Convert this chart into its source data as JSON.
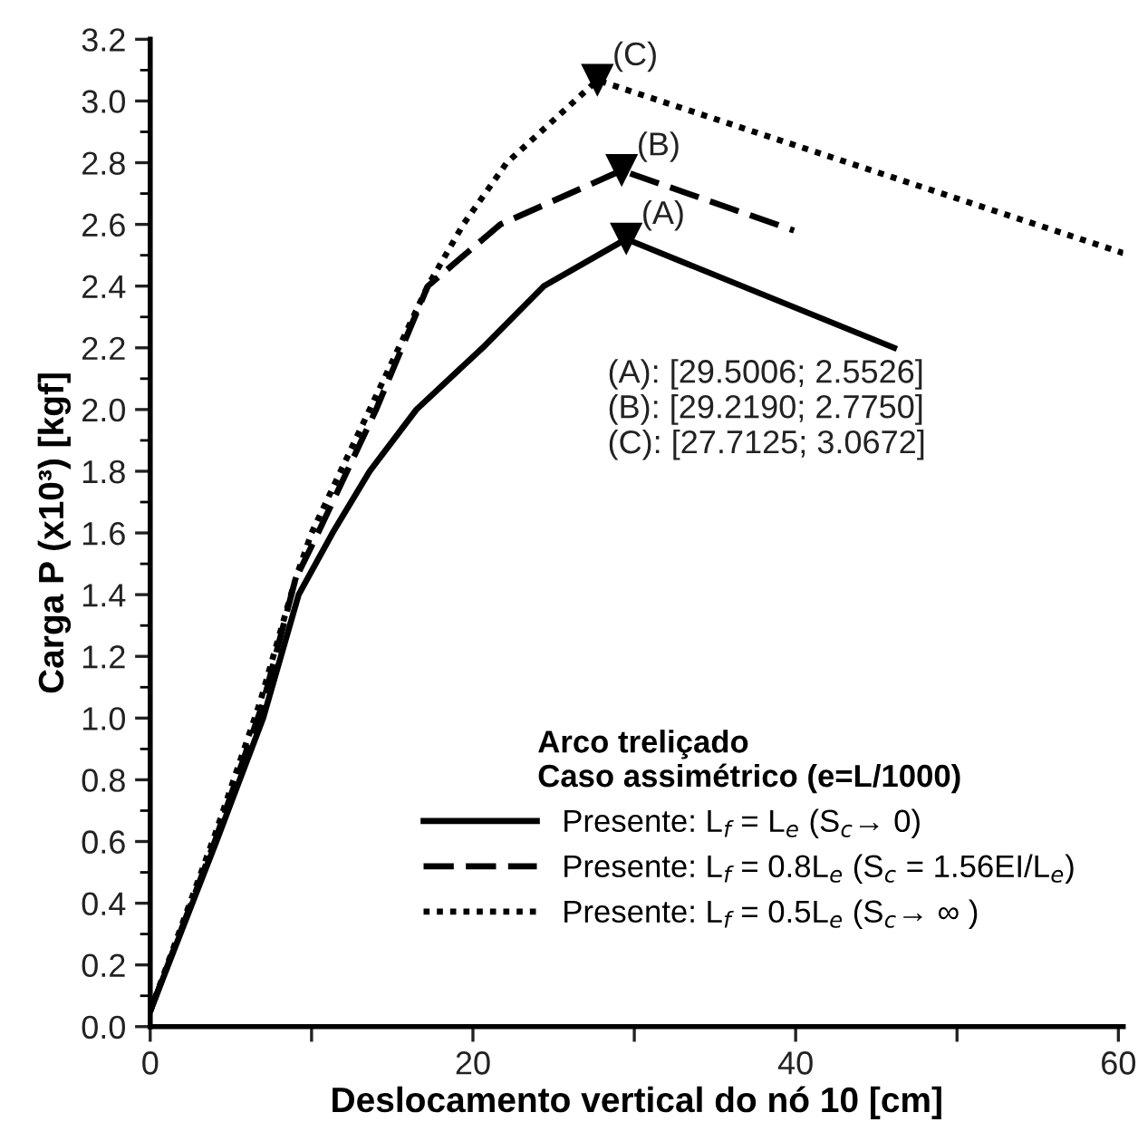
{
  "chart_data": {
    "type": "line",
    "xlabel": "Deslocamento vertical do nó 10 [cm]",
    "ylabel": "Carga P (x10³) [kgf]",
    "legend_title": "Arco treliçado\nCaso assimétrico (e=L/1000)",
    "legend": "bottom right",
    "grid": false,
    "xlim": [
      0,
      60.3
    ],
    "xticks": [
      0,
      {
        "value": 10,
        "label": null
      },
      20,
      {
        "value": 30,
        "label": null
      },
      40,
      {
        "value": 50,
        "label": null
      },
      60
    ],
    "ylim": [
      0,
      3.2
    ],
    "yticks": [
      {
        "value": 0,
        "label": "0.0"
      },
      {
        "value": 0.2,
        "label": "0.2"
      },
      {
        "value": 0.4,
        "label": "0.4"
      },
      {
        "value": 0.6,
        "label": "0.6"
      },
      {
        "value": 0.8,
        "label": "0.8"
      },
      {
        "value": 1,
        "label": "1.0"
      },
      {
        "value": 1.2,
        "label": "1.2"
      },
      {
        "value": 1.4,
        "label": "1.4"
      },
      {
        "value": 1.6,
        "label": "1.6"
      },
      {
        "value": 1.8,
        "label": "1.8"
      },
      {
        "value": 2,
        "label": "2.0"
      },
      {
        "value": 2.2,
        "label": "2.2"
      },
      {
        "value": 2.4,
        "label": "2.4"
      },
      {
        "value": 2.6,
        "label": "2.6"
      },
      {
        "value": 2.8,
        "label": "2.8"
      },
      {
        "value": 3,
        "label": "3.0"
      },
      {
        "value": 3.2,
        "label": "3.2"
      }
    ],
    "series": [
      {
        "name": "Presente: L$_{f}$ = L$_{e}$ (S$_{c}$→ 0)",
        "color": "#000000",
        "line_style": "solid",
        "x": [
          0,
          4.1,
          7.0,
          9.2,
          11.3,
          13.6,
          16.5,
          20.6,
          24.4,
          29.5006,
          46.1
        ],
        "values": [
          0.05,
          0.6,
          1.0,
          1.4,
          1.6,
          1.8,
          2.0,
          2.2,
          2.4,
          2.5526,
          2.2
        ]
      },
      {
        "name": "Presente: L$_{f}$ = 0.8L$_{e}$ (S$_{c}$ = 1.56EI/L$_{e}$)",
        "color": "#000000",
        "line_style": "dashed",
        "x": [
          0,
          4.0,
          7.0,
          9.0,
          10.4,
          14.0,
          17.2,
          21.7,
          29.219,
          39.9
        ],
        "values": [
          0.05,
          0.6,
          1.05,
          1.45,
          1.6,
          2.0,
          2.4,
          2.6,
          2.775,
          2.58
        ]
      },
      {
        "name": "Presente: L$_{f}$ = 0.5L$_{e}$ (S$_{c}$→ ∞ )",
        "color": "#000000",
        "line_style": "dotted",
        "x": [
          0,
          4.0,
          6.8,
          9.0,
          10.0,
          13.6,
          17.2,
          19.4,
          22.1,
          27.7125,
          60.3
        ],
        "values": [
          0.05,
          0.62,
          1.05,
          1.45,
          1.6,
          2.0,
          2.4,
          2.6,
          2.8,
          3.0672,
          2.507
        ]
      },
      {
        "type": "scatter",
        "marker": "triangle",
        "color": "#000000",
        "x": [
          29.5006,
          29.219,
          27.7125
        ],
        "values": [
          2.5526,
          2.775,
          3.0672
        ]
      }
    ],
    "annotations": [
      {
        "text": "(A)",
        "x": 29.5006,
        "y": 2.5526
      },
      {
        "text": "(B)",
        "x": 29.219,
        "y": 2.775
      },
      {
        "text": "(C)",
        "x": 27.7125,
        "y": 3.0672
      },
      "(A): [29.5006; 2.5526]\n(B): [29.2190; 2.7750]\n(C): [27.7125; 3.0672]"
    ]
  }
}
